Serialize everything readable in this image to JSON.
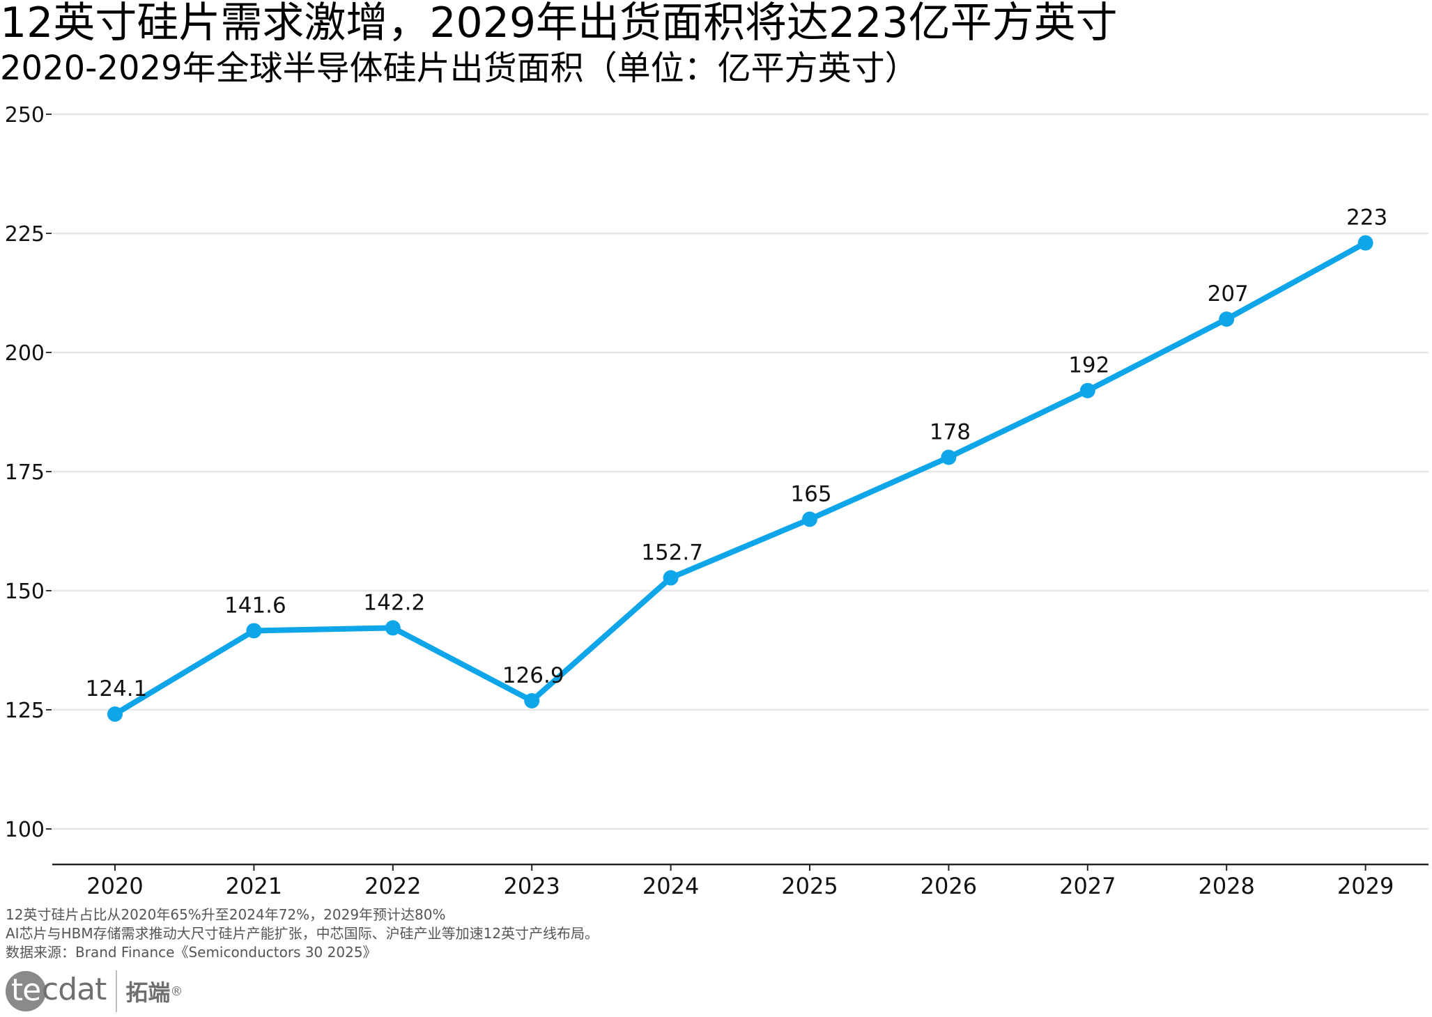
{
  "header": {
    "title": "12英寸硅片需求激增，2029年出货面积将达223亿平方英寸",
    "subtitle": "2020-2029年全球半导体硅片出货面积（单位：亿平方英寸）"
  },
  "chart_data": {
    "type": "line",
    "categories": [
      "2020",
      "2021",
      "2022",
      "2023",
      "2024",
      "2025",
      "2026",
      "2027",
      "2028",
      "2029"
    ],
    "series": [
      {
        "values": [
          124.1,
          141.6,
          142.2,
          126.9,
          152.7,
          165,
          178,
          192,
          207,
          223
        ],
        "labels": [
          "124.1",
          "141.6",
          "142.2",
          "126.9",
          "152.7",
          "165",
          "178",
          "192",
          "207",
          "223"
        ]
      }
    ],
    "yticks": [
      100,
      125,
      150,
      175,
      200,
      225,
      250
    ],
    "ytick_labels": [
      "100",
      "125",
      "150",
      "175",
      "200",
      "225",
      "250"
    ],
    "ylim": [
      93,
      252
    ],
    "grid": "horizontal",
    "line_color": "#0ea5e9",
    "xlabel": "",
    "ylabel": ""
  },
  "notes": {
    "line1": "12英寸硅片占比从2020年65%升至2024年72%，2029年预计达80%",
    "line2": "AI芯片与HBM存储需求推动大尺寸硅片产能扩张，中芯国际、沪硅产业等加速12英寸产线布局。",
    "line3": "数据来源：Brand Finance《Semiconductors 30 2025》"
  },
  "logo": {
    "circle_text": "te",
    "mark_text": "cdat",
    "cn_text": "拓端",
    "reg": "®"
  }
}
